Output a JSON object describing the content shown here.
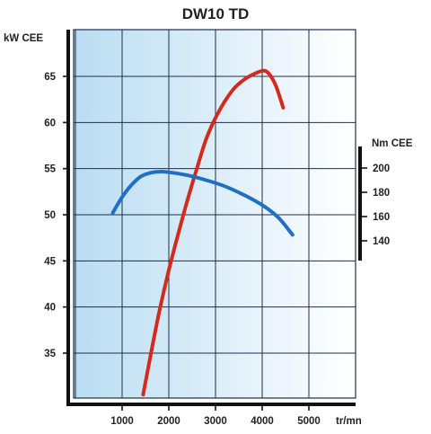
{
  "chart_data": {
    "type": "line",
    "title": "DW10 TD",
    "xlabel": "tr/mn",
    "ylabel_left": "kW CEE",
    "ylabel_right": "Nm CEE",
    "x_ticks": [
      1000,
      2000,
      3000,
      4000,
      5000
    ],
    "y_ticks_left": [
      35,
      40,
      45,
      50,
      55,
      60,
      65
    ],
    "y_ticks_right": [
      140,
      160,
      180,
      200
    ],
    "xlim": [
      0,
      6000
    ],
    "ylim_left": [
      30,
      70
    ],
    "ylim_right": [
      120,
      250
    ],
    "grid": true,
    "colors": {
      "power": "#d42a1e",
      "torque": "#1f6fc4",
      "plot_bg_left": "#b9ddf2",
      "plot_bg_right": "#ffffff"
    },
    "series": [
      {
        "name": "",
        "axis": "left",
        "color": "#d42a1e",
        "x": [
          1450,
          1600,
          1800,
          2000,
          2200,
          2400,
          2600,
          2800,
          3000,
          3200,
          3400,
          3600,
          3800,
          4000,
          4100,
          4200,
          4300,
          4450
        ],
        "y": [
          30.5,
          34.5,
          39.6,
          44.0,
          47.9,
          51.6,
          55.0,
          58.2,
          60.5,
          62.3,
          63.7,
          64.6,
          65.2,
          65.6,
          65.5,
          64.9,
          63.9,
          61.6
        ]
      },
      {
        "name": "",
        "axis": "right",
        "color": "#1f6fc4",
        "x": [
          800,
          1000,
          1200,
          1400,
          1600,
          1800,
          2000,
          2400,
          2800,
          3200,
          3600,
          3800,
          4000,
          4200,
          4400,
          4650
        ],
        "y": [
          163,
          176,
          186,
          193,
          196,
          197,
          196.5,
          194,
          190,
          185,
          178,
          174,
          169.5,
          164,
          157,
          145
        ]
      }
    ]
  }
}
